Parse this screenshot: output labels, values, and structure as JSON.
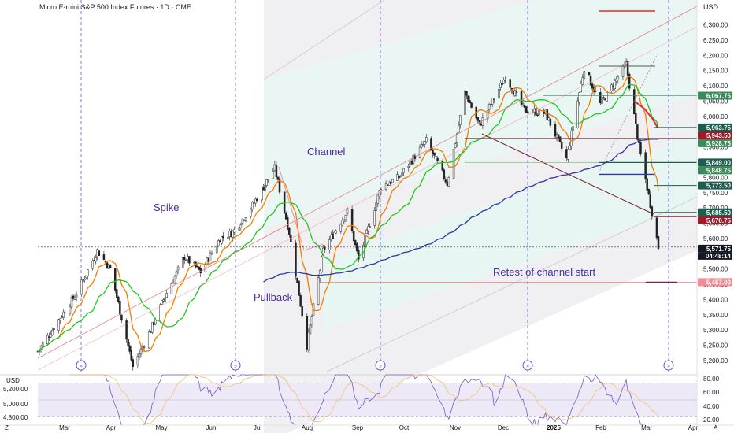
{
  "header": {
    "title": "Micro E-mini S&P 500 Index Futures · 1D · CME",
    "currency": "USD"
  },
  "lower_panel": {
    "currency": "USD",
    "left_ticks": [
      "5,200.00",
      "5,000.00",
      "4,800.00"
    ],
    "right_ticks": [
      "80.00",
      "60.00",
      "40.00",
      "20.00"
    ]
  },
  "x_axis": {
    "months": [
      "Mar",
      "Apr",
      "May",
      "Jun",
      "Jul",
      "Aug",
      "Sep",
      "Oct",
      "Nov",
      "Dec",
      "2025",
      "Feb",
      "Mar",
      "Apr"
    ],
    "corner_left": "Z",
    "corner_right": "A"
  },
  "annotations": {
    "spike": "Spike",
    "channel": "Channel",
    "pullback": "Pullback",
    "retest": "Retest of channel start"
  },
  "price_tags": [
    {
      "label": "6,067.75",
      "value": 6067.75,
      "color": "#3b8a5a"
    },
    {
      "label": "5,963.75",
      "value": 5963.75,
      "color": "#1b5e50"
    },
    {
      "label": "5,943.50",
      "value": 5943.5,
      "color": "#9b1c2a"
    },
    {
      "label": "5,928.75",
      "value": 5928.75,
      "color": "#3b8a5a"
    },
    {
      "label": "5,849.00",
      "value": 5849.0,
      "color": "#1b5e50"
    },
    {
      "label": "5,848.75",
      "value": 5848.75,
      "color": "#3b8a5a"
    },
    {
      "label": "5,773.50",
      "value": 5773.5,
      "color": "#1b5e50"
    },
    {
      "label": "5,685.50",
      "value": 5685.5,
      "color": "#1b5e50"
    },
    {
      "label": "5,670.75",
      "value": 5670.75,
      "color": "#9b1c2a"
    },
    {
      "label": "5,571.75",
      "value": 5571.75,
      "color": "#131722"
    },
    {
      "label": "5,457.00",
      "value": 5457.0,
      "color": "#f28b95"
    }
  ],
  "countdown": "04:48:14",
  "chart_data": {
    "type": "candlestick",
    "title": "Micro E-mini S&P 500 Index Futures · 1D · CME",
    "ylabel": "USD",
    "ylim": [
      5160,
      6380
    ],
    "y_ticks": [
      6300,
      6250,
      6200,
      6150,
      6100,
      6050,
      6000,
      5950,
      5900,
      5850,
      5800,
      5750,
      5700,
      5650,
      5600,
      5550,
      5500,
      5450,
      5400,
      5350,
      5300,
      5250,
      5200
    ],
    "y_tick_labels": [
      "6,300.00",
      "6,250.00",
      "6,200.00",
      "6,150.00",
      "6,100.00",
      "6,050.00",
      "6,000.00",
      "5,950.00",
      "5,900.00",
      "5,850.00",
      "5,800.00",
      "5,750.00",
      "5,700.00",
      "5,650.00",
      "5,600.00",
      "5,550.00",
      "5,500.00",
      "5,450.00",
      "5,400.00",
      "5,350.00",
      "5,300.00",
      "5,250.00",
      "5,200.00"
    ],
    "close_path": [
      [
        "2024-02-20",
        5230
      ],
      [
        "2024-03-01",
        5310
      ],
      [
        "2024-03-15",
        5420
      ],
      [
        "2024-03-28",
        5560
      ],
      [
        "2024-04-05",
        5500
      ],
      [
        "2024-04-19",
        5180
      ],
      [
        "2024-04-30",
        5300
      ],
      [
        "2024-05-08",
        5400
      ],
      [
        "2024-05-21",
        5540
      ],
      [
        "2024-05-31",
        5490
      ],
      [
        "2024-06-12",
        5600
      ],
      [
        "2024-06-20",
        5620
      ],
      [
        "2024-07-01",
        5700
      ],
      [
        "2024-07-16",
        5830
      ],
      [
        "2024-07-25",
        5620
      ],
      [
        "2024-08-05",
        5250
      ],
      [
        "2024-08-15",
        5560
      ],
      [
        "2024-08-30",
        5690
      ],
      [
        "2024-09-06",
        5530
      ],
      [
        "2024-09-20",
        5770
      ],
      [
        "2024-10-01",
        5800
      ],
      [
        "2024-10-18",
        5920
      ],
      [
        "2024-10-31",
        5780
      ],
      [
        "2024-11-11",
        6080
      ],
      [
        "2024-11-20",
        5970
      ],
      [
        "2024-12-06",
        6130
      ],
      [
        "2024-12-18",
        6020
      ],
      [
        "2024-12-31",
        6010
      ],
      [
        "2025-01-13",
        5860
      ],
      [
        "2025-01-24",
        6160
      ],
      [
        "2025-02-03",
        6040
      ],
      [
        "2025-02-19",
        6170
      ],
      [
        "2025-02-27",
        5900
      ],
      [
        "2025-03-05",
        5740
      ],
      [
        "2025-03-11",
        5572
      ]
    ],
    "moving_averages": [
      {
        "period": "fast",
        "color": "#f57c00"
      },
      {
        "period": "mid",
        "color": "#1ec81e"
      },
      {
        "period": "slow",
        "color": "#2b3aa0"
      }
    ],
    "channel": {
      "lower_start": [
        "2024-08-05",
        5250
      ],
      "lower_end": [
        "2025-03-11",
        5560
      ],
      "upper_end": [
        "2025-03-11",
        6380
      ]
    },
    "retest_level": 5457.0,
    "last_price": 5571.75,
    "rsi": {
      "range": [
        20,
        80
      ],
      "levels": [
        70,
        30
      ],
      "last": 22
    }
  }
}
